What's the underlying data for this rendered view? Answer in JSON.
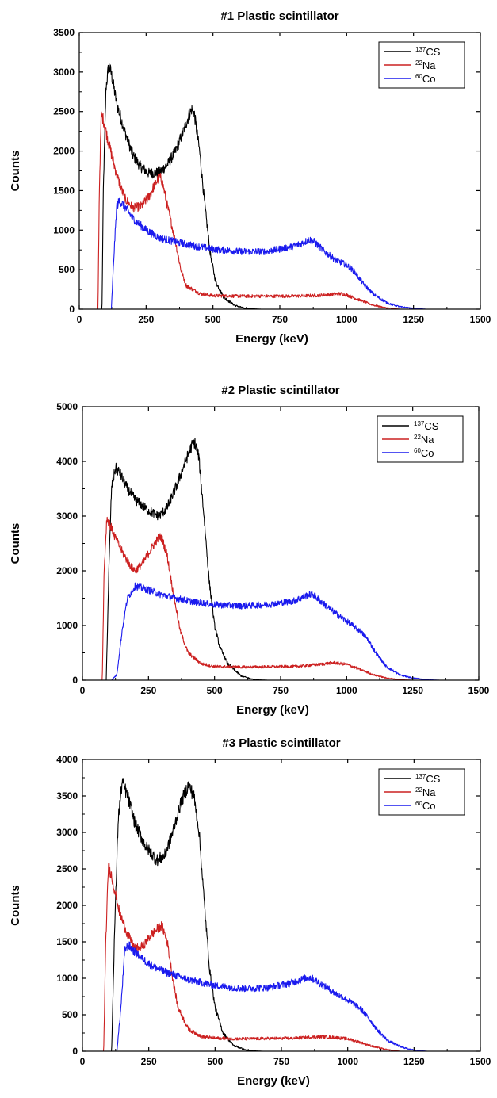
{
  "chart_data": [
    {
      "type": "line",
      "title": "#1 Plastic scintillator",
      "xlabel": "Energy (keV)",
      "ylabel": "Counts",
      "xlim": [
        0,
        1500
      ],
      "ylim": [
        0,
        3500
      ],
      "xticks": [
        0,
        250,
        500,
        750,
        1000,
        1250,
        1500
      ],
      "yticks": [
        0,
        500,
        1000,
        1500,
        2000,
        2500,
        3000,
        3500
      ],
      "legend_position": "top-right",
      "series": [
        {
          "name": "137CS",
          "name_parts": {
            "sup": "137",
            "base": "CS"
          },
          "color": "#000000",
          "points": [
            [
              70,
              0
            ],
            [
              85,
              0
            ],
            [
              90,
              1500
            ],
            [
              100,
              2800
            ],
            [
              110,
              3080
            ],
            [
              120,
              2980
            ],
            [
              140,
              2600
            ],
            [
              170,
              2250
            ],
            [
              200,
              1950
            ],
            [
              230,
              1800
            ],
            [
              260,
              1720
            ],
            [
              300,
              1730
            ],
            [
              330,
              1830
            ],
            [
              360,
              2000
            ],
            [
              390,
              2250
            ],
            [
              410,
              2450
            ],
            [
              420,
              2530
            ],
            [
              430,
              2480
            ],
            [
              450,
              2000
            ],
            [
              470,
              1300
            ],
            [
              490,
              700
            ],
            [
              510,
              350
            ],
            [
              540,
              150
            ],
            [
              580,
              50
            ],
            [
              620,
              10
            ],
            [
              680,
              0
            ],
            [
              1500,
              0
            ]
          ]
        },
        {
          "name": "22Na",
          "name_parts": {
            "sup": "22",
            "base": "Na"
          },
          "color": "#cc2020",
          "points": [
            [
              60,
              0
            ],
            [
              70,
              0
            ],
            [
              75,
              1500
            ],
            [
              82,
              2450
            ],
            [
              90,
              2400
            ],
            [
              110,
              2100
            ],
            [
              140,
              1700
            ],
            [
              170,
              1400
            ],
            [
              200,
              1280
            ],
            [
              230,
              1300
            ],
            [
              260,
              1420
            ],
            [
              280,
              1560
            ],
            [
              300,
              1680
            ],
            [
              310,
              1620
            ],
            [
              330,
              1300
            ],
            [
              360,
              850
            ],
            [
              380,
              500
            ],
            [
              400,
              300
            ],
            [
              450,
              200
            ],
            [
              500,
              170
            ],
            [
              600,
              165
            ],
            [
              700,
              165
            ],
            [
              800,
              165
            ],
            [
              900,
              175
            ],
            [
              950,
              190
            ],
            [
              980,
              195
            ],
            [
              1000,
              180
            ],
            [
              1030,
              140
            ],
            [
              1060,
              100
            ],
            [
              1100,
              50
            ],
            [
              1150,
              15
            ],
            [
              1200,
              0
            ],
            [
              1500,
              0
            ]
          ]
        },
        {
          "name": "60Co",
          "name_parts": {
            "sup": "60",
            "base": "Co"
          },
          "color": "#1a1aee",
          "points": [
            [
              120,
              0
            ],
            [
              130,
              700
            ],
            [
              140,
              1300
            ],
            [
              150,
              1370
            ],
            [
              170,
              1300
            ],
            [
              200,
              1150
            ],
            [
              250,
              1000
            ],
            [
              300,
              900
            ],
            [
              400,
              820
            ],
            [
              500,
              760
            ],
            [
              600,
              730
            ],
            [
              700,
              730
            ],
            [
              780,
              780
            ],
            [
              830,
              830
            ],
            [
              860,
              880
            ],
            [
              880,
              850
            ],
            [
              920,
              720
            ],
            [
              960,
              620
            ],
            [
              1000,
              560
            ],
            [
              1030,
              470
            ],
            [
              1060,
              330
            ],
            [
              1100,
              190
            ],
            [
              1150,
              80
            ],
            [
              1200,
              30
            ],
            [
              1250,
              10
            ],
            [
              1300,
              0
            ],
            [
              1500,
              0
            ]
          ]
        }
      ]
    },
    {
      "type": "line",
      "title": "#2 Plastic scintillator",
      "xlabel": "Energy (keV)",
      "ylabel": "Counts",
      "xlim": [
        0,
        1500
      ],
      "ylim": [
        0,
        5000
      ],
      "xticks": [
        0,
        250,
        500,
        750,
        1000,
        1250,
        1500
      ],
      "yticks": [
        0,
        1000,
        2000,
        3000,
        4000,
        5000
      ],
      "legend_position": "top-right",
      "series": [
        {
          "name": "137CS",
          "name_parts": {
            "sup": "137",
            "base": "CS"
          },
          "color": "#000000",
          "points": [
            [
              75,
              0
            ],
            [
              90,
              0
            ],
            [
              100,
              2000
            ],
            [
              110,
              3500
            ],
            [
              125,
              3880
            ],
            [
              140,
              3800
            ],
            [
              170,
              3500
            ],
            [
              200,
              3300
            ],
            [
              250,
              3100
            ],
            [
              290,
              3000
            ],
            [
              320,
              3150
            ],
            [
              360,
              3600
            ],
            [
              390,
              4000
            ],
            [
              415,
              4300
            ],
            [
              425,
              4350
            ],
            [
              440,
              4100
            ],
            [
              460,
              3000
            ],
            [
              480,
              1800
            ],
            [
              500,
              1000
            ],
            [
              520,
              600
            ],
            [
              550,
              300
            ],
            [
              600,
              80
            ],
            [
              650,
              10
            ],
            [
              700,
              0
            ],
            [
              1500,
              0
            ]
          ]
        },
        {
          "name": "22Na",
          "name_parts": {
            "sup": "22",
            "base": "Na"
          },
          "color": "#cc2020",
          "points": [
            [
              65,
              0
            ],
            [
              75,
              0
            ],
            [
              82,
              2000
            ],
            [
              92,
              2950
            ],
            [
              100,
              2900
            ],
            [
              120,
              2650
            ],
            [
              150,
              2350
            ],
            [
              180,
              2100
            ],
            [
              200,
              2000
            ],
            [
              230,
              2150
            ],
            [
              260,
              2400
            ],
            [
              290,
              2620
            ],
            [
              300,
              2600
            ],
            [
              320,
              2300
            ],
            [
              340,
              1700
            ],
            [
              370,
              900
            ],
            [
              400,
              500
            ],
            [
              450,
              300
            ],
            [
              500,
              250
            ],
            [
              600,
              240
            ],
            [
              700,
              245
            ],
            [
              800,
              250
            ],
            [
              900,
              290
            ],
            [
              950,
              320
            ],
            [
              1000,
              290
            ],
            [
              1050,
              200
            ],
            [
              1100,
              100
            ],
            [
              1150,
              40
            ],
            [
              1200,
              10
            ],
            [
              1250,
              0
            ],
            [
              1500,
              0
            ]
          ]
        },
        {
          "name": "60Co",
          "name_parts": {
            "sup": "60",
            "base": "Co"
          },
          "color": "#1a1aee",
          "points": [
            [
              110,
              0
            ],
            [
              130,
              100
            ],
            [
              150,
              900
            ],
            [
              170,
              1500
            ],
            [
              200,
              1720
            ],
            [
              250,
              1650
            ],
            [
              300,
              1560
            ],
            [
              400,
              1450
            ],
            [
              500,
              1380
            ],
            [
              600,
              1360
            ],
            [
              700,
              1380
            ],
            [
              800,
              1450
            ],
            [
              850,
              1550
            ],
            [
              870,
              1580
            ],
            [
              900,
              1450
            ],
            [
              950,
              1250
            ],
            [
              1000,
              1080
            ],
            [
              1050,
              900
            ],
            [
              1080,
              750
            ],
            [
              1110,
              500
            ],
            [
              1150,
              250
            ],
            [
              1200,
              100
            ],
            [
              1250,
              40
            ],
            [
              1300,
              10
            ],
            [
              1350,
              0
            ],
            [
              1500,
              0
            ]
          ]
        }
      ]
    },
    {
      "type": "line",
      "title": "#3 Plastic scintillator",
      "xlabel": "Energy (keV)",
      "ylabel": "Counts",
      "xlim": [
        0,
        1500
      ],
      "ylim": [
        0,
        4000
      ],
      "xticks": [
        0,
        250,
        500,
        750,
        1000,
        1250,
        1500
      ],
      "yticks": [
        0,
        500,
        1000,
        1500,
        2000,
        2500,
        3000,
        3500,
        4000
      ],
      "legend_position": "top-right",
      "series": [
        {
          "name": "137CS",
          "name_parts": {
            "sup": "137",
            "base": "CS"
          },
          "color": "#000000",
          "points": [
            [
              100,
              0
            ],
            [
              110,
              0
            ],
            [
              120,
              1500
            ],
            [
              135,
              3200
            ],
            [
              150,
              3700
            ],
            [
              170,
              3500
            ],
            [
              200,
              3100
            ],
            [
              240,
              2800
            ],
            [
              280,
              2620
            ],
            [
              310,
              2680
            ],
            [
              340,
              3000
            ],
            [
              370,
              3400
            ],
            [
              400,
              3650
            ],
            [
              420,
              3500
            ],
            [
              440,
              3000
            ],
            [
              460,
              2000
            ],
            [
              480,
              1100
            ],
            [
              500,
              600
            ],
            [
              530,
              250
            ],
            [
              570,
              80
            ],
            [
              620,
              10
            ],
            [
              680,
              0
            ],
            [
              1500,
              0
            ]
          ]
        },
        {
          "name": "22Na",
          "name_parts": {
            "sup": "22",
            "base": "Na"
          },
          "color": "#cc2020",
          "points": [
            [
              70,
              0
            ],
            [
              80,
              0
            ],
            [
              88,
              1500
            ],
            [
              98,
              2550
            ],
            [
              110,
              2400
            ],
            [
              140,
              1900
            ],
            [
              170,
              1600
            ],
            [
              200,
              1400
            ],
            [
              230,
              1450
            ],
            [
              260,
              1600
            ],
            [
              290,
              1700
            ],
            [
              300,
              1720
            ],
            [
              320,
              1500
            ],
            [
              340,
              1000
            ],
            [
              360,
              600
            ],
            [
              400,
              300
            ],
            [
              450,
              200
            ],
            [
              500,
              180
            ],
            [
              600,
              170
            ],
            [
              700,
              175
            ],
            [
              800,
              180
            ],
            [
              900,
              200
            ],
            [
              950,
              190
            ],
            [
              1000,
              170
            ],
            [
              1050,
              120
            ],
            [
              1100,
              60
            ],
            [
              1150,
              20
            ],
            [
              1200,
              0
            ],
            [
              1500,
              0
            ]
          ]
        },
        {
          "name": "60Co",
          "name_parts": {
            "sup": "60",
            "base": "Co"
          },
          "color": "#1a1aee",
          "points": [
            [
              130,
              0
            ],
            [
              145,
              600
            ],
            [
              160,
              1400
            ],
            [
              175,
              1450
            ],
            [
              200,
              1350
            ],
            [
              250,
              1200
            ],
            [
              300,
              1100
            ],
            [
              400,
              980
            ],
            [
              500,
              900
            ],
            [
              600,
              860
            ],
            [
              700,
              870
            ],
            [
              780,
              930
            ],
            [
              840,
              1000
            ],
            [
              860,
              1010
            ],
            [
              900,
              920
            ],
            [
              950,
              800
            ],
            [
              1000,
              700
            ],
            [
              1050,
              580
            ],
            [
              1080,
              450
            ],
            [
              1110,
              300
            ],
            [
              1150,
              150
            ],
            [
              1200,
              60
            ],
            [
              1250,
              15
            ],
            [
              1300,
              0
            ],
            [
              1500,
              0
            ]
          ]
        }
      ]
    }
  ]
}
